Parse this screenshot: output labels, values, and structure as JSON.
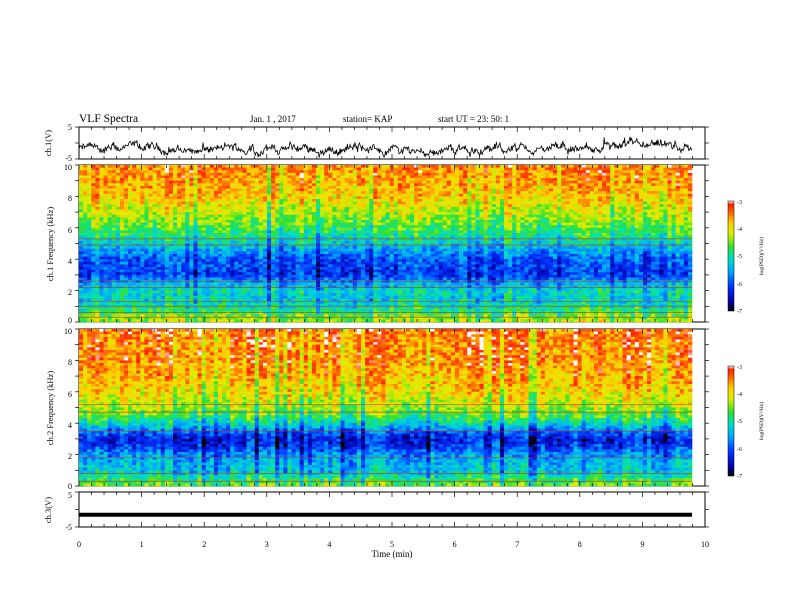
{
  "header": {
    "title": "VLF Spectra",
    "date": "Jan. 1 , 2017",
    "station": "station= KAP",
    "start": "start UT =   23: 50: 1"
  },
  "chart_data": [
    {
      "type": "line",
      "panel": "ch1-waveform",
      "ylabel": "ch.1(V)",
      "ylim": [
        -5,
        5
      ],
      "yticks": [
        "5",
        "-5"
      ],
      "xlim": [
        0,
        10
      ],
      "series_note": "noisy waveform hovering near -2 V, range about -4 to 0 V",
      "mean": -2,
      "spread": 2
    },
    {
      "type": "heatmap",
      "panel": "ch1-spectrogram",
      "ylabel": "ch.1 Frequency (kHz)",
      "ylim": [
        0,
        10
      ],
      "yticks": [
        "0",
        "2",
        "4",
        "6",
        "8",
        "10"
      ],
      "xlim": [
        0,
        10
      ],
      "colorbar": {
        "label": "log(PSD)(V²/Hz)",
        "min": -7,
        "max": -3,
        "ticks": [
          "-3",
          "-4",
          "-5",
          "-6",
          "-7"
        ]
      },
      "profile": [
        {
          "f": 0.0,
          "v": -4.2
        },
        {
          "f": 0.5,
          "v": -4.6
        },
        {
          "f": 1.0,
          "v": -5.0
        },
        {
          "f": 1.5,
          "v": -5.2
        },
        {
          "f": 2.0,
          "v": -5.1
        },
        {
          "f": 2.5,
          "v": -5.5
        },
        {
          "f": 3.0,
          "v": -6.1
        },
        {
          "f": 3.5,
          "v": -6.0
        },
        {
          "f": 4.0,
          "v": -5.9
        },
        {
          "f": 4.5,
          "v": -5.6
        },
        {
          "f": 5.0,
          "v": -5.2
        },
        {
          "f": 5.5,
          "v": -4.9
        },
        {
          "f": 6.0,
          "v": -4.6
        },
        {
          "f": 7.0,
          "v": -4.2
        },
        {
          "f": 8.0,
          "v": -3.8
        },
        {
          "f": 9.0,
          "v": -3.6
        },
        {
          "f": 10.0,
          "v": -3.5
        }
      ],
      "lines_khz": [
        0.3,
        0.6,
        1.0,
        1.3,
        2.2,
        2.6,
        4.9,
        5.3
      ]
    },
    {
      "type": "heatmap",
      "panel": "ch2-spectrogram",
      "ylabel": "ch.2 Frequency (kHz)",
      "ylim": [
        0,
        10
      ],
      "yticks": [
        "0",
        "2",
        "4",
        "6",
        "8",
        "10"
      ],
      "xlim": [
        0,
        10
      ],
      "colorbar": {
        "label": "log(PSD)(V²/Hz)",
        "min": -7,
        "max": -3,
        "ticks": [
          "-3",
          "-4",
          "-5",
          "-6",
          "-7"
        ]
      },
      "profile": [
        {
          "f": 0.0,
          "v": -4.4
        },
        {
          "f": 0.5,
          "v": -4.9
        },
        {
          "f": 1.0,
          "v": -5.3
        },
        {
          "f": 1.5,
          "v": -5.4
        },
        {
          "f": 2.0,
          "v": -5.6
        },
        {
          "f": 2.5,
          "v": -6.1
        },
        {
          "f": 3.0,
          "v": -6.3
        },
        {
          "f": 3.5,
          "v": -5.8
        },
        {
          "f": 4.0,
          "v": -5.1
        },
        {
          "f": 4.5,
          "v": -4.6
        },
        {
          "f": 5.0,
          "v": -4.3
        },
        {
          "f": 6.0,
          "v": -3.9
        },
        {
          "f": 7.0,
          "v": -3.7
        },
        {
          "f": 8.0,
          "v": -3.5
        },
        {
          "f": 9.0,
          "v": -3.5
        },
        {
          "f": 10.0,
          "v": -3.4
        }
      ],
      "lines_khz": [
        0.3,
        0.8,
        1.8,
        3.5,
        4.7,
        5.2
      ]
    },
    {
      "type": "line",
      "panel": "ch3-waveform",
      "ylabel": "ch.3(V)",
      "ylim": [
        -5,
        5
      ],
      "yticks": [
        "5",
        "-5"
      ],
      "xlabel": "Time (min)",
      "xlim": [
        0,
        10
      ],
      "xticks": [
        "0",
        "1",
        "2",
        "3",
        "4",
        "5",
        "6",
        "7",
        "8",
        "9",
        "10"
      ],
      "series_note": "flat line at about -1.5 V",
      "constant": -1.5
    }
  ]
}
